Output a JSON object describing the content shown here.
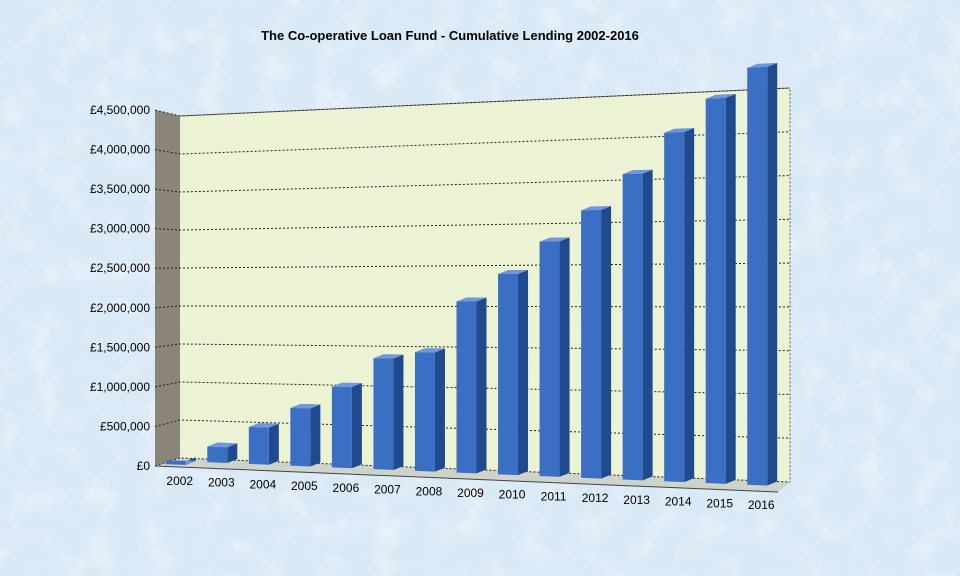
{
  "colors": {
    "background": "#d9e9f6",
    "plot_wall": "#eef4cf",
    "side_wall": "#8b8478",
    "bar_front": "#3a6fc4",
    "bar_side": "#1f4a8e",
    "bar_top": "#6f98dc"
  },
  "chart_data": {
    "type": "bar",
    "title": "The Co-operative Loan Fund - Cumulative Lending 2002-2016",
    "xlabel": "",
    "ylabel": "",
    "categories": [
      "2002",
      "2003",
      "2004",
      "2005",
      "2006",
      "2007",
      "2008",
      "2009",
      "2010",
      "2011",
      "2012",
      "2013",
      "2014",
      "2015",
      "2016"
    ],
    "values": [
      30000,
      270000,
      530000,
      780000,
      1050000,
      1400000,
      1480000,
      2080000,
      2400000,
      2770000,
      3120000,
      3520000,
      3970000,
      4330000,
      4650000
    ],
    "yticks": [
      "£0",
      "£500,000",
      "£1,000,000",
      "£1,500,000",
      "£2,000,000",
      "£2,500,000",
      "£3,000,000",
      "£3,500,000",
      "£4,000,000",
      "£4,500,000"
    ],
    "ylim": [
      0,
      4500000
    ],
    "grid": true,
    "legend": "none"
  }
}
